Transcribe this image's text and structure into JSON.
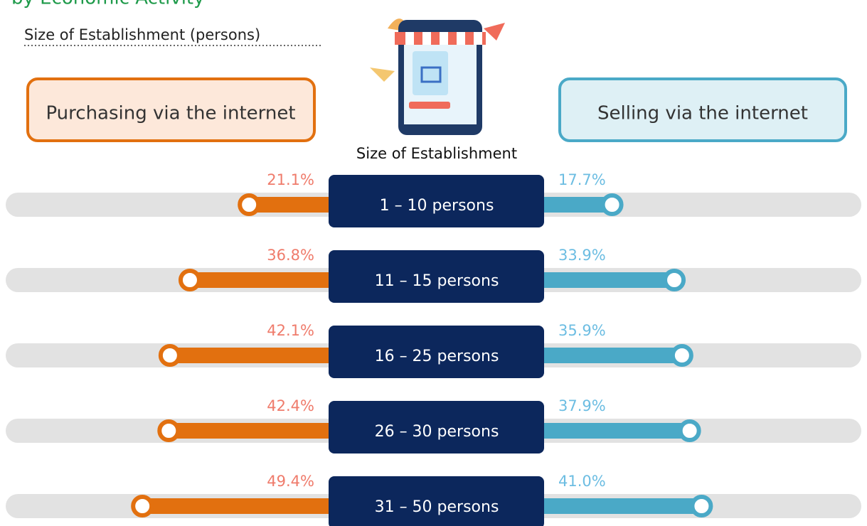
{
  "chart_data": {
    "type": "butterfly",
    "title": "by Economic Activity",
    "subtitle": "Size of Establishment (persons)",
    "category_label": "Size of Establishment",
    "categories": [
      "1 – 10 persons",
      "11 – 15 persons",
      "16 – 25 persons",
      "26 – 30 persons",
      "31 – 50 persons"
    ],
    "series": [
      {
        "name": "Purchasing via the internet",
        "color": "#e2700f",
        "label_color": "#ef7b6b",
        "box_fill": "#fde8da",
        "values": [
          21.1,
          36.8,
          42.1,
          42.4,
          49.4
        ],
        "value_labels": [
          "21.1%",
          "36.8%",
          "42.1%",
          "42.4%",
          "49.4%"
        ]
      },
      {
        "name": "Selling via the internet",
        "color": "#4aa9c7",
        "label_color": "#6cbde2",
        "box_fill": "#def0f5",
        "values": [
          17.7,
          33.9,
          35.9,
          37.9,
          41.0
        ],
        "value_labels": [
          "17.7%",
          "33.9%",
          "35.9%",
          "37.9%",
          "41.0%"
        ]
      }
    ]
  }
}
